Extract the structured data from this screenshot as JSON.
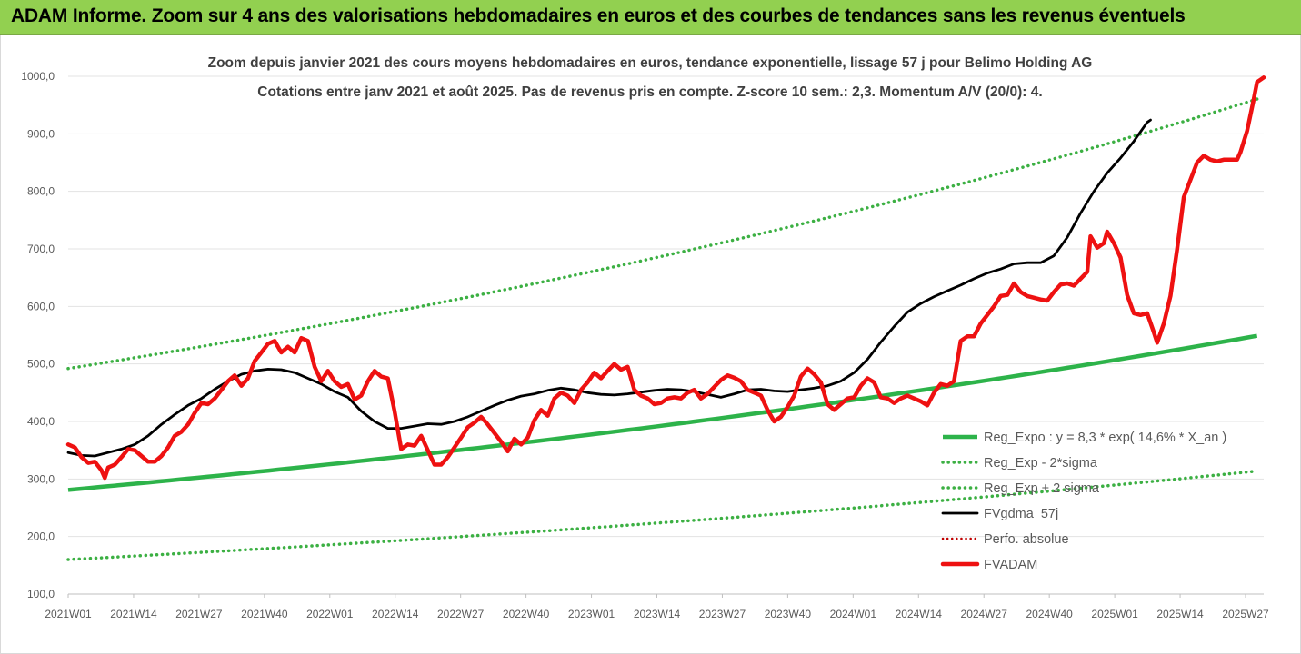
{
  "banner": {
    "title": "ADAM Informe. Zoom sur 4 ans des valorisations hebdomadaires en euros et des courbes de tendances sans les revenus éventuels"
  },
  "chart_data": {
    "type": "line",
    "title_line1": "Zoom depuis janvier 2021 des cours moyens hebdomadaires en euros, tendance exponentielle, lissage 57 j pour Belimo Holding AG",
    "title_line2": "Cotations entre janv 2021 et août 2025.  Pas de revenus pris en compte. Z-score 10 sem.: 2,3. Momentum A/V (20/0): 4.",
    "ylim": [
      100,
      1000
    ],
    "yticks": [
      "1000,0",
      "900,0",
      "800,0",
      "700,0",
      "600,0",
      "500,0",
      "400,0",
      "300,0",
      "200,0",
      "100,0"
    ],
    "xticks": [
      "2021W01",
      "2021W14",
      "2021W27",
      "2021W40",
      "2022W01",
      "2022W14",
      "2022W27",
      "2022W40",
      "2023W01",
      "2023W14",
      "2023W27",
      "2023W40",
      "2024W01",
      "2024W14",
      "2024W27",
      "2024W40",
      "2025W01",
      "2025W14",
      "2025W27"
    ],
    "grid": true,
    "legend_position": "right",
    "colors": {
      "trend": "#2db34a",
      "dotted": "#3cb043",
      "smooth": "#000000",
      "perf": "#c00000",
      "price": "#ee1111"
    },
    "series": [
      {
        "name": "Reg_Expo : y = 8,3 * exp( 14,6% *  X_an )",
        "style": "solid-green",
        "formula": "exponential",
        "start": 281,
        "end": 551
      },
      {
        "name": "Reg_Exp - 2*sigma",
        "style": "dotted-green",
        "formula": "exponential",
        "start": 492,
        "end": 964
      },
      {
        "name": "Reg_Exp + 2 sigma",
        "style": "dotted-green",
        "formula": "exponential",
        "start": 160,
        "end": 315
      },
      {
        "name": "FVgdma_57j",
        "style": "solid-black",
        "points": [
          [
            0,
            346
          ],
          [
            4,
            341
          ],
          [
            8,
            340
          ],
          [
            12,
            346
          ],
          [
            16,
            352
          ],
          [
            20,
            360
          ],
          [
            24,
            375
          ],
          [
            28,
            395
          ],
          [
            32,
            412
          ],
          [
            36,
            428
          ],
          [
            40,
            440
          ],
          [
            44,
            456
          ],
          [
            48,
            470
          ],
          [
            52,
            482
          ],
          [
            56,
            488
          ],
          [
            60,
            491
          ],
          [
            64,
            490
          ],
          [
            68,
            485
          ],
          [
            72,
            475
          ],
          [
            76,
            465
          ],
          [
            80,
            452
          ],
          [
            84,
            442
          ],
          [
            88,
            418
          ],
          [
            92,
            400
          ],
          [
            96,
            388
          ],
          [
            100,
            388
          ],
          [
            104,
            392
          ],
          [
            108,
            396
          ],
          [
            112,
            395
          ],
          [
            116,
            400
          ],
          [
            120,
            408
          ],
          [
            124,
            418
          ],
          [
            128,
            428
          ],
          [
            132,
            437
          ],
          [
            136,
            444
          ],
          [
            140,
            448
          ],
          [
            144,
            454
          ],
          [
            148,
            458
          ],
          [
            152,
            455
          ],
          [
            156,
            450
          ],
          [
            160,
            447
          ],
          [
            164,
            446
          ],
          [
            168,
            448
          ],
          [
            172,
            451
          ],
          [
            176,
            454
          ],
          [
            180,
            456
          ],
          [
            184,
            455
          ],
          [
            188,
            452
          ],
          [
            192,
            447
          ],
          [
            196,
            442
          ],
          [
            200,
            448
          ],
          [
            204,
            455
          ],
          [
            208,
            456
          ],
          [
            212,
            453
          ],
          [
            216,
            452
          ],
          [
            220,
            455
          ],
          [
            224,
            458
          ],
          [
            228,
            462
          ],
          [
            232,
            470
          ],
          [
            236,
            485
          ],
          [
            240,
            508
          ],
          [
            244,
            538
          ],
          [
            248,
            565
          ],
          [
            252,
            590
          ],
          [
            256,
            605
          ],
          [
            260,
            617
          ],
          [
            264,
            627
          ],
          [
            268,
            637
          ],
          [
            272,
            648
          ],
          [
            276,
            658
          ],
          [
            280,
            665
          ],
          [
            284,
            674
          ],
          [
            288,
            676
          ],
          [
            292,
            676
          ],
          [
            296,
            688
          ],
          [
            300,
            720
          ],
          [
            304,
            762
          ],
          [
            308,
            800
          ],
          [
            312,
            832
          ],
          [
            316,
            858
          ],
          [
            320,
            887
          ],
          [
            324,
            920
          ],
          [
            325,
            924
          ]
        ]
      },
      {
        "name": "Perfo. absolue",
        "style": "dotted-red",
        "points": []
      },
      {
        "name": "FVADAM",
        "style": "solid-red",
        "points": [
          [
            0,
            360
          ],
          [
            2,
            355
          ],
          [
            4,
            338
          ],
          [
            6,
            328
          ],
          [
            8,
            330
          ],
          [
            10,
            315
          ],
          [
            11,
            302
          ],
          [
            12,
            320
          ],
          [
            14,
            325
          ],
          [
            16,
            338
          ],
          [
            18,
            352
          ],
          [
            20,
            350
          ],
          [
            22,
            340
          ],
          [
            24,
            330
          ],
          [
            26,
            330
          ],
          [
            28,
            340
          ],
          [
            30,
            355
          ],
          [
            32,
            375
          ],
          [
            34,
            382
          ],
          [
            36,
            395
          ],
          [
            38,
            415
          ],
          [
            40,
            432
          ],
          [
            42,
            430
          ],
          [
            44,
            440
          ],
          [
            46,
            455
          ],
          [
            48,
            470
          ],
          [
            50,
            480
          ],
          [
            52,
            462
          ],
          [
            54,
            475
          ],
          [
            56,
            505
          ],
          [
            58,
            520
          ],
          [
            60,
            535
          ],
          [
            62,
            540
          ],
          [
            64,
            520
          ],
          [
            66,
            530
          ],
          [
            68,
            520
          ],
          [
            70,
            545
          ],
          [
            72,
            540
          ],
          [
            74,
            495
          ],
          [
            76,
            470
          ],
          [
            78,
            488
          ],
          [
            80,
            470
          ],
          [
            82,
            460
          ],
          [
            84,
            465
          ],
          [
            86,
            438
          ],
          [
            88,
            445
          ],
          [
            90,
            470
          ],
          [
            92,
            488
          ],
          [
            94,
            478
          ],
          [
            96,
            475
          ],
          [
            98,
            418
          ],
          [
            100,
            352
          ],
          [
            102,
            360
          ],
          [
            104,
            358
          ],
          [
            106,
            375
          ],
          [
            108,
            350
          ],
          [
            110,
            325
          ],
          [
            112,
            325
          ],
          [
            114,
            338
          ],
          [
            116,
            355
          ],
          [
            118,
            372
          ],
          [
            120,
            390
          ],
          [
            122,
            398
          ],
          [
            124,
            408
          ],
          [
            126,
            395
          ],
          [
            128,
            380
          ],
          [
            130,
            365
          ],
          [
            132,
            348
          ],
          [
            134,
            370
          ],
          [
            136,
            360
          ],
          [
            138,
            372
          ],
          [
            140,
            402
          ],
          [
            142,
            420
          ],
          [
            144,
            410
          ],
          [
            146,
            440
          ],
          [
            148,
            450
          ],
          [
            150,
            445
          ],
          [
            152,
            432
          ],
          [
            154,
            455
          ],
          [
            156,
            468
          ],
          [
            158,
            485
          ],
          [
            160,
            475
          ],
          [
            162,
            488
          ],
          [
            164,
            500
          ],
          [
            166,
            490
          ],
          [
            168,
            495
          ],
          [
            170,
            455
          ],
          [
            172,
            445
          ],
          [
            174,
            440
          ],
          [
            176,
            430
          ],
          [
            178,
            432
          ],
          [
            180,
            440
          ],
          [
            182,
            442
          ],
          [
            184,
            440
          ],
          [
            186,
            450
          ],
          [
            188,
            455
          ],
          [
            190,
            440
          ],
          [
            192,
            448
          ],
          [
            194,
            460
          ],
          [
            196,
            472
          ],
          [
            198,
            480
          ],
          [
            200,
            476
          ],
          [
            202,
            470
          ],
          [
            204,
            455
          ],
          [
            206,
            450
          ],
          [
            208,
            445
          ],
          [
            210,
            420
          ],
          [
            212,
            400
          ],
          [
            214,
            408
          ],
          [
            216,
            425
          ],
          [
            218,
            445
          ],
          [
            220,
            478
          ],
          [
            222,
            492
          ],
          [
            224,
            482
          ],
          [
            226,
            468
          ],
          [
            228,
            430
          ],
          [
            230,
            420
          ],
          [
            232,
            430
          ],
          [
            234,
            440
          ],
          [
            236,
            442
          ],
          [
            238,
            462
          ],
          [
            240,
            475
          ],
          [
            242,
            468
          ],
          [
            244,
            442
          ],
          [
            246,
            440
          ],
          [
            248,
            432
          ],
          [
            250,
            440
          ],
          [
            252,
            445
          ],
          [
            254,
            440
          ],
          [
            256,
            435
          ],
          [
            258,
            428
          ],
          [
            260,
            450
          ],
          [
            262,
            465
          ],
          [
            264,
            462
          ],
          [
            266,
            470
          ],
          [
            268,
            540
          ],
          [
            270,
            548
          ],
          [
            272,
            548
          ],
          [
            274,
            570
          ],
          [
            276,
            585
          ],
          [
            278,
            600
          ],
          [
            280,
            618
          ],
          [
            282,
            620
          ],
          [
            284,
            640
          ],
          [
            286,
            625
          ],
          [
            288,
            618
          ],
          [
            290,
            615
          ],
          [
            292,
            612
          ],
          [
            294,
            610
          ],
          [
            296,
            625
          ],
          [
            298,
            638
          ],
          [
            300,
            640
          ],
          [
            302,
            636
          ],
          [
            304,
            648
          ],
          [
            306,
            660
          ],
          [
            307,
            722
          ],
          [
            309,
            702
          ],
          [
            311,
            710
          ],
          [
            312,
            730
          ],
          [
            314,
            710
          ],
          [
            316,
            685
          ],
          [
            318,
            620
          ],
          [
            320,
            588
          ],
          [
            322,
            585
          ],
          [
            324,
            588
          ],
          [
            326,
            555
          ],
          [
            327,
            537
          ],
          [
            329,
            570
          ],
          [
            331,
            618
          ],
          [
            333,
            700
          ],
          [
            335,
            790
          ],
          [
            337,
            820
          ],
          [
            339,
            850
          ],
          [
            341,
            862
          ],
          [
            343,
            855
          ],
          [
            345,
            852
          ],
          [
            347,
            855
          ],
          [
            349,
            855
          ],
          [
            351,
            855
          ],
          [
            352,
            868
          ],
          [
            354,
            905
          ],
          [
            356,
            960
          ],
          [
            357,
            990
          ],
          [
            359,
            998
          ]
        ]
      }
    ]
  }
}
